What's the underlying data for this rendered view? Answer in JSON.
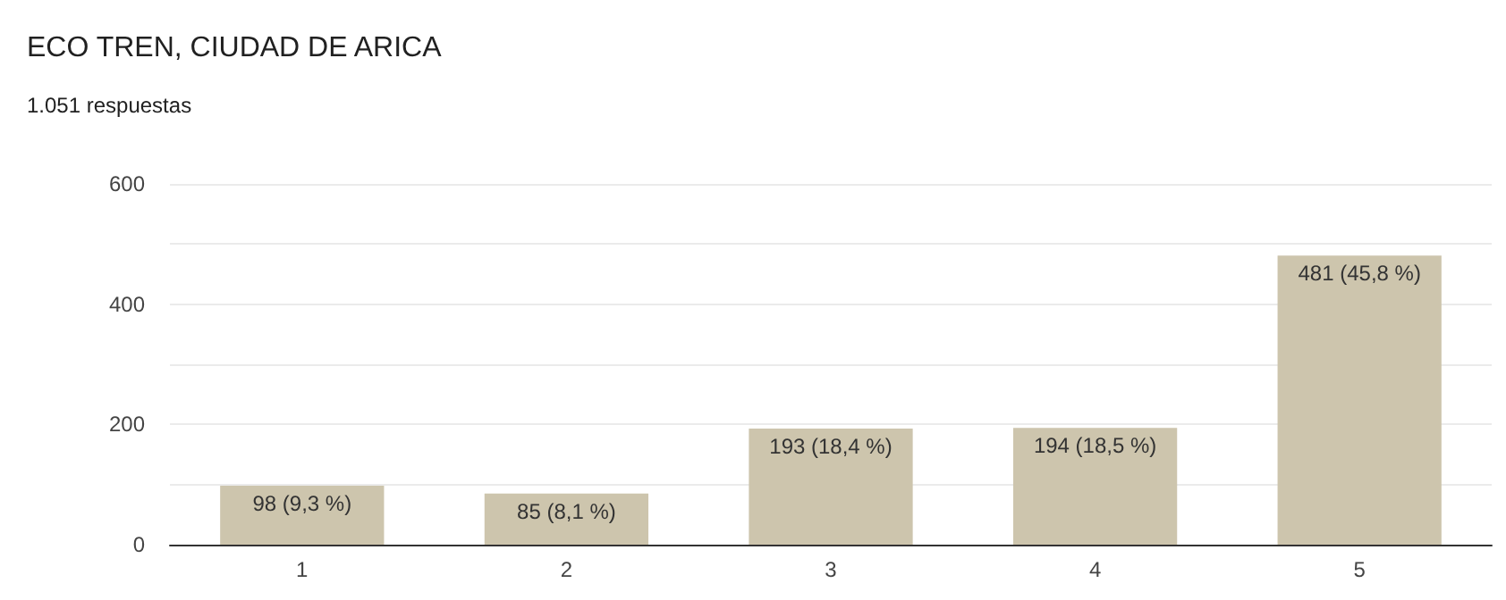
{
  "chart_data": {
    "type": "bar",
    "title": "ECO TREN, CIUDAD DE ARICA",
    "subtitle": "1.051 respuestas",
    "categories": [
      "1",
      "2",
      "3",
      "4",
      "5"
    ],
    "values": [
      98,
      85,
      193,
      194,
      481
    ],
    "value_labels": [
      "98 (9,3 %)",
      "85 (8,1 %)",
      "193 (18,4 %)",
      "194 (18,5 %)",
      "481 (45,8 %)"
    ],
    "color": "#cdc5ad",
    "ylim": [
      0,
      600
    ],
    "yticks": [
      0,
      {
        "value": 100,
        "label": null
      },
      200,
      {
        "value": 300,
        "label": null
      },
      400,
      {
        "value": 500,
        "label": null
      },
      600
    ],
    "grid": "y"
  }
}
